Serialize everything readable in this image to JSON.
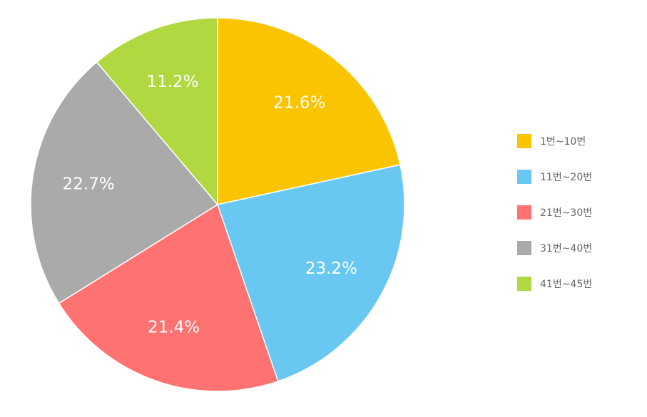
{
  "chart_data": {
    "type": "pie",
    "title": "",
    "start_angle_deg": 0,
    "direction": "clockwise",
    "legend_position": "right",
    "slices": [
      {
        "label": "1번~10번",
        "value": 21.6,
        "display": "21.6%",
        "color": "#FBC400"
      },
      {
        "label": "11번~20번",
        "value": 23.2,
        "display": "23.2%",
        "color": "#69C8F2"
      },
      {
        "label": "21번~30번",
        "value": 21.4,
        "display": "21.4%",
        "color": "#FF7272"
      },
      {
        "label": "31번~40번",
        "value": 22.7,
        "display": "22.7%",
        "color": "#AAAAAA"
      },
      {
        "label": "41번~45번",
        "value": 11.2,
        "display": "11.2%",
        "color": "#B0D840"
      }
    ]
  }
}
